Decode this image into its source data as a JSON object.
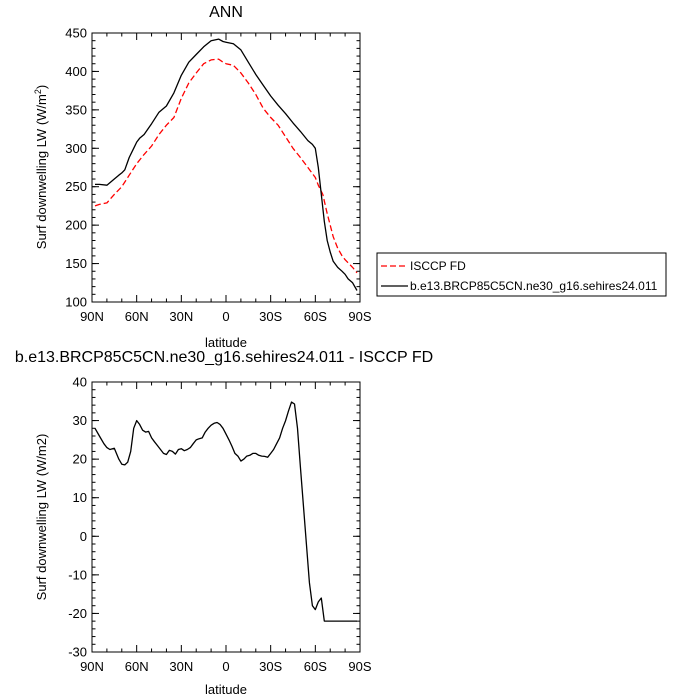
{
  "chart_data": [
    {
      "type": "line",
      "title": "ANN",
      "xlabel": "latitude",
      "ylabel_main": "Surf downwelling LW (W/m",
      "ylabel_sup": "2",
      "ylabel_tail": ")",
      "xlim": [
        90,
        -90
      ],
      "ylim": [
        100,
        450
      ],
      "x_ticks": [
        90,
        60,
        30,
        0,
        -30,
        -60,
        -90
      ],
      "x_tick_labels": [
        "90N",
        "60N",
        "30N",
        "0",
        "30S",
        "60S",
        "90S"
      ],
      "y_ticks": [
        100,
        150,
        200,
        250,
        300,
        350,
        400,
        450
      ],
      "y_tick_labels": [
        "100",
        "150",
        "200",
        "250",
        "300",
        "350",
        "400",
        "450"
      ],
      "legend_position": "right",
      "series": [
        {
          "name": "ISCCP FD",
          "color": "#ff0000",
          "style": "dashed",
          "x": [
            88,
            85,
            80,
            75,
            70,
            65,
            60,
            55,
            50,
            45,
            40,
            35,
            30,
            25,
            20,
            15,
            10,
            5,
            2,
            0,
            -5,
            -10,
            -15,
            -20,
            -25,
            -30,
            -35,
            -40,
            -45,
            -50,
            -55,
            -60,
            -62,
            -65,
            -68,
            -70,
            -72,
            -75,
            -78,
            -80,
            -85,
            -88
          ],
          "y": [
            225,
            227,
            229,
            240,
            250,
            265,
            280,
            292,
            303,
            318,
            330,
            340,
            365,
            385,
            398,
            410,
            415,
            416,
            412,
            410,
            408,
            398,
            385,
            370,
            352,
            340,
            330,
            315,
            300,
            288,
            275,
            262,
            252,
            240,
            215,
            200,
            185,
            170,
            160,
            155,
            145,
            138
          ]
        },
        {
          "name": "b.e13.BRCP85C5CN.ne30_g16.sehires24.011",
          "color": "#000000",
          "style": "solid",
          "x": [
            88,
            85,
            80,
            75,
            72,
            70,
            68,
            65,
            62,
            60,
            58,
            55,
            50,
            45,
            40,
            35,
            30,
            25,
            20,
            15,
            10,
            5,
            2,
            0,
            -5,
            -10,
            -15,
            -20,
            -25,
            -30,
            -35,
            -40,
            -45,
            -50,
            -55,
            -58,
            -60,
            -62,
            -64,
            -66,
            -68,
            -70,
            -72,
            -75,
            -78,
            -80,
            -82,
            -85,
            -88
          ],
          "y": [
            253,
            253,
            252,
            260,
            265,
            268,
            272,
            288,
            300,
            308,
            313,
            318,
            332,
            347,
            355,
            372,
            395,
            412,
            422,
            432,
            440,
            442,
            439,
            438,
            436,
            428,
            412,
            396,
            382,
            368,
            356,
            345,
            333,
            322,
            310,
            305,
            300,
            275,
            240,
            205,
            180,
            165,
            153,
            145,
            140,
            136,
            130,
            125,
            115
          ]
        }
      ]
    },
    {
      "type": "line",
      "title": "b.e13.BRCP85C5CN.ne30_g16.sehires24.011 - ISCCP FD",
      "xlabel": "latitude",
      "ylabel": "Surf downwelling LW (W/m2)",
      "xlim": [
        90,
        -90
      ],
      "ylim": [
        -30,
        40
      ],
      "x_ticks": [
        90,
        60,
        30,
        0,
        -30,
        -60,
        -90
      ],
      "x_tick_labels": [
        "90N",
        "60N",
        "30N",
        "0",
        "30S",
        "60S",
        "90S"
      ],
      "y_ticks": [
        -30,
        -20,
        -10,
        0,
        10,
        20,
        30,
        40
      ],
      "y_tick_labels": [
        "-30",
        "-20",
        "-10",
        "0",
        "10",
        "20",
        "30",
        "40"
      ],
      "series": [
        {
          "color": "#000000",
          "style": "solid",
          "x": [
            88,
            85,
            82,
            80,
            78,
            75,
            72,
            70,
            68,
            66,
            64,
            62,
            60,
            58,
            56,
            54,
            52,
            50,
            48,
            46,
            44,
            42,
            40,
            38,
            36,
            34,
            32,
            30,
            28,
            26,
            24,
            22,
            20,
            18,
            16,
            14,
            12,
            10,
            8,
            6,
            4,
            2,
            0,
            -2,
            -4,
            -6,
            -8,
            -10,
            -12,
            -14,
            -16,
            -18,
            -20,
            -22,
            -24,
            -26,
            -28,
            -30,
            -32,
            -34,
            -36,
            -38,
            -40,
            -42,
            -44,
            -46,
            -48,
            -50,
            -52,
            -54,
            -56,
            -58,
            -60,
            -62,
            -64,
            -66,
            -68,
            -70,
            -72,
            -74,
            -76,
            -78,
            -80,
            -82,
            -84,
            -86,
            -88
          ],
          "y": [
            28,
            26,
            24,
            23,
            22.5,
            22.8,
            20,
            18.7,
            18.5,
            19.2,
            22,
            28,
            30,
            29,
            27.5,
            27,
            27.2,
            25.5,
            24.5,
            23.5,
            22.5,
            21.5,
            21.2,
            22.3,
            22,
            21.3,
            22.5,
            22.7,
            22.2,
            22.5,
            23,
            24,
            25,
            25.3,
            25.5,
            27,
            28,
            28.8,
            29.3,
            29.5,
            29,
            28,
            26.5,
            25,
            23.3,
            21.5,
            20.8,
            19.5,
            20,
            20.8,
            21,
            21.5,
            21.5,
            21,
            20.8,
            20.7,
            20.5,
            21.5,
            22.5,
            24,
            25.5,
            28,
            30,
            32.5,
            34.8,
            34.3,
            28,
            18,
            8,
            -2,
            -12,
            -18,
            -19,
            -17,
            -16,
            -22,
            -22,
            -22,
            -22,
            -22,
            -22,
            -22,
            -22,
            -22,
            -22,
            -22,
            -22
          ]
        }
      ]
    }
  ]
}
